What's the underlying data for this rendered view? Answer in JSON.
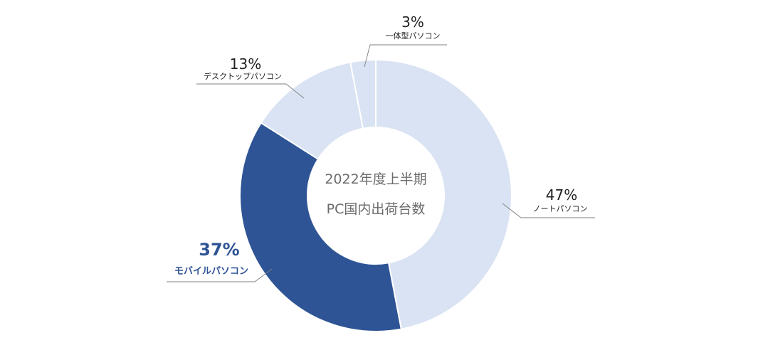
{
  "chart_data": {
    "type": "pie",
    "variant": "donut",
    "center_title": [
      "2022年度上半期",
      "PC国内出荷台数"
    ],
    "slices": [
      {
        "name": "ノートパソコン",
        "value": 47,
        "label": "47%",
        "color": "#dae3f3"
      },
      {
        "name": "モバイルパソコン",
        "value": 37,
        "label": "37%",
        "color": "#2e5495",
        "highlight": true
      },
      {
        "name": "デスクトップパソコン",
        "value": 13,
        "label": "13%",
        "color": "#dae3f3"
      },
      {
        "name": "一体型パソコン",
        "value": 3,
        "label": "3%",
        "color": "#dae3f3"
      }
    ],
    "start_angle_deg": 0,
    "direction": "clockwise"
  }
}
